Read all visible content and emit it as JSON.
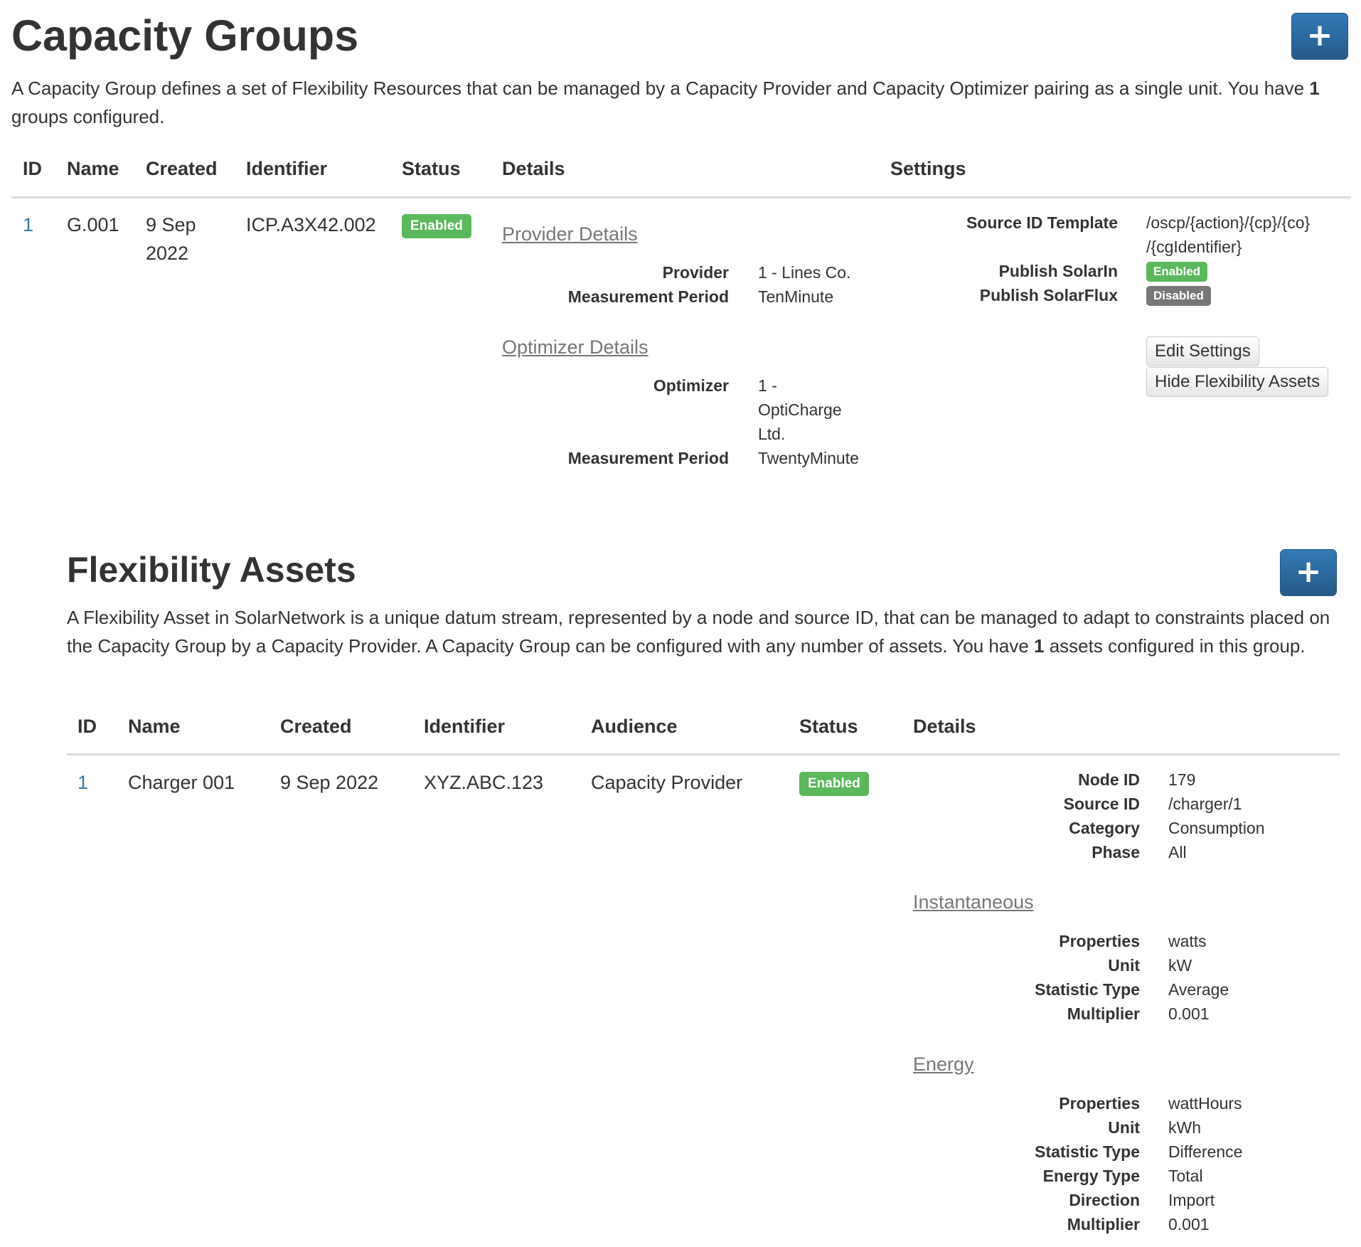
{
  "groups": {
    "title": "Capacity Groups",
    "add_button": "+",
    "desc_prefix": "A Capacity Group defines a set of Flexibility Resources that can be managed by a Capacity Provider and Capacity Optimizer pairing as a single unit. You have ",
    "desc_count": "1",
    "desc_suffix": " groups configured.",
    "headers": [
      "ID",
      "Name",
      "Created",
      "Identifier",
      "Status",
      "Details",
      "Settings"
    ],
    "row": {
      "id": "1",
      "name": "G.001",
      "created_line1": "9 Sep",
      "created_line2": "2022",
      "identifier": "ICP.A3X42.002",
      "status": "Enabled",
      "provider_section": "Provider Details",
      "provider_label": "Provider",
      "provider_value": "1 - Lines Co.",
      "provider_period_label": "Measurement Period",
      "provider_period_value": "TenMinute",
      "optimizer_section": "Optimizer Details",
      "optimizer_label": "Optimizer",
      "optimizer_value_l1": "1 -",
      "optimizer_value_l2": "OptiCharge",
      "optimizer_value_l3": "Ltd.",
      "optimizer_period_label": "Measurement Period",
      "optimizer_period_value": "TwentyMinute",
      "source_template_label": "Source ID Template",
      "source_template_l1": "/oscp/{action}/{cp}/{co}",
      "source_template_l2": "/{cgIdentifier}",
      "publish_solarin_label": "Publish SolarIn",
      "publish_solarin_value": "Enabled",
      "publish_solarflux_label": "Publish SolarFlux",
      "publish_solarflux_value": "Disabled",
      "edit_settings": "Edit Settings",
      "hide_assets": "Hide Flexibility Assets"
    }
  },
  "assets": {
    "title": "Flexibility Assets",
    "add_button": "+",
    "desc_prefix": "A Flexibility Asset in SolarNetwork is a unique datum stream, represented by a node and source ID, that can be managed to adapt to constraints placed on the Capacity Group by a Capacity Provider. A Capacity Group can be configured with any number of assets. You have ",
    "desc_count": "1",
    "desc_suffix": " assets configured in this group.",
    "headers": [
      "ID",
      "Name",
      "Created",
      "Identifier",
      "Audience",
      "Status",
      "Details"
    ],
    "row": {
      "id": "1",
      "name": "Charger 001",
      "created": "9 Sep 2022",
      "identifier": "XYZ.ABC.123",
      "audience": "Capacity Provider",
      "status": "Enabled",
      "details": [
        {
          "k": "Node ID",
          "v": "179"
        },
        {
          "k": "Source ID",
          "v": "/charger/1"
        },
        {
          "k": "Category",
          "v": "Consumption"
        },
        {
          "k": "Phase",
          "v": "All"
        }
      ],
      "instantaneous_section": "Instantaneous",
      "instantaneous": [
        {
          "k": "Properties",
          "v": "watts"
        },
        {
          "k": "Unit",
          "v": "kW"
        },
        {
          "k": "Statistic Type",
          "v": "Average"
        },
        {
          "k": "Multiplier",
          "v": "0.001"
        }
      ],
      "energy_section": "Energy",
      "energy": [
        {
          "k": "Properties",
          "v": "wattHours"
        },
        {
          "k": "Unit",
          "v": "kWh"
        },
        {
          "k": "Statistic Type",
          "v": "Difference"
        },
        {
          "k": "Energy Type",
          "v": "Total"
        },
        {
          "k": "Direction",
          "v": "Import"
        },
        {
          "k": "Multiplier",
          "v": "0.001"
        }
      ]
    }
  }
}
